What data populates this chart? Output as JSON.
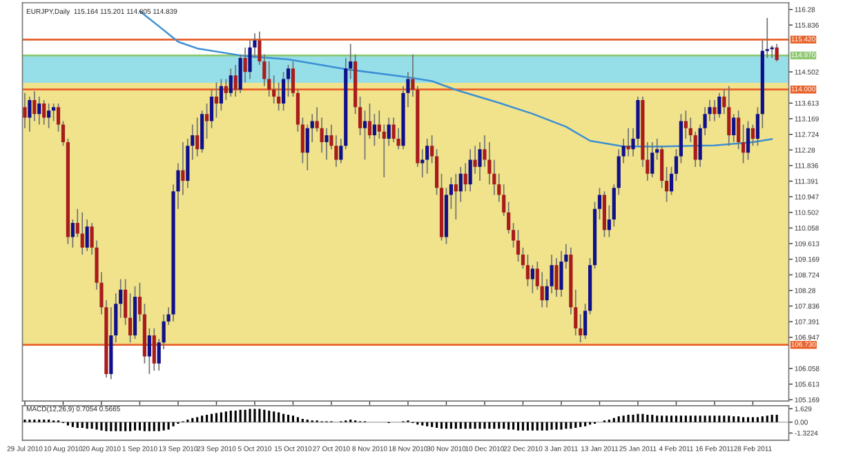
{
  "chart_data": [
    {
      "type": "candlestick",
      "title": "EURJPY,Daily  115.164 115.201 114.805 114.839",
      "categories": [
        "29 Jul 2010",
        null,
        null,
        null,
        null,
        null,
        null,
        null,
        "10 Aug 2010",
        null,
        null,
        null,
        null,
        null,
        null,
        null,
        "20 Aug 2010",
        null,
        null,
        null,
        null,
        null,
        null,
        null,
        "1 Sep 2010",
        null,
        null,
        null,
        null,
        null,
        null,
        null,
        "13 Sep 2010",
        null,
        null,
        null,
        null,
        null,
        null,
        null,
        "23 Sep 2010",
        null,
        null,
        null,
        null,
        null,
        null,
        null,
        "5 Oct 2010",
        null,
        null,
        null,
        null,
        null,
        null,
        null,
        "15 Oct 2010",
        null,
        null,
        null,
        null,
        null,
        null,
        null,
        "27 Oct 2010",
        null,
        null,
        null,
        null,
        null,
        null,
        null,
        "8 Nov 2010",
        null,
        null,
        null,
        null,
        null,
        null,
        null,
        "18 Nov 2010",
        null,
        null,
        null,
        null,
        null,
        null,
        null,
        "30 Nov 2010",
        null,
        null,
        null,
        null,
        null,
        null,
        null,
        "10 Dec 2010",
        null,
        null,
        null,
        null,
        null,
        null,
        null,
        "22 Dec 2010",
        null,
        null,
        null,
        null,
        null,
        null,
        null,
        "3 Jan 2011",
        null,
        null,
        null,
        null,
        null,
        null,
        null,
        "13 Jan 2011",
        null,
        null,
        null,
        null,
        null,
        null,
        null,
        "25 Jan 2011",
        null,
        null,
        null,
        null,
        null,
        null,
        null,
        "4 Feb 2011",
        null,
        null,
        null,
        null,
        null,
        null,
        null,
        "16 Feb 2011",
        null,
        null,
        null,
        null,
        null,
        null,
        null,
        "28 Feb 2011",
        null,
        null,
        null,
        null,
        null
      ],
      "ohlc": [
        [
          113.5,
          113.9,
          112.9,
          113.2
        ],
        [
          113.2,
          113.8,
          112.8,
          113.7
        ],
        [
          113.7,
          113.95,
          113.1,
          113.3
        ],
        [
          113.3,
          113.8,
          113.0,
          113.6
        ],
        [
          113.6,
          113.7,
          113.0,
          113.2
        ],
        [
          113.2,
          113.6,
          112.9,
          113.4
        ],
        [
          113.4,
          113.6,
          113.1,
          113.5
        ],
        [
          113.5,
          113.6,
          112.8,
          113.0
        ],
        [
          113.0,
          113.1,
          112.4,
          112.5
        ],
        [
          112.5,
          112.6,
          109.6,
          109.8
        ],
        [
          109.8,
          110.3,
          109.5,
          110.2
        ],
        [
          110.2,
          110.6,
          109.8,
          109.9
        ],
        [
          109.9,
          110.5,
          109.3,
          109.5
        ],
        [
          109.5,
          110.3,
          109.4,
          110.1
        ],
        [
          110.1,
          110.2,
          109.3,
          109.5
        ],
        [
          109.5,
          109.7,
          108.3,
          108.5
        ],
        [
          108.5,
          108.8,
          107.6,
          107.8
        ],
        [
          107.8,
          108.0,
          105.8,
          105.9
        ],
        [
          105.9,
          107.8,
          105.75,
          107.0
        ],
        [
          107.0,
          108.2,
          106.8,
          107.9
        ],
        [
          107.9,
          108.6,
          107.5,
          108.3
        ],
        [
          108.3,
          108.6,
          107.3,
          107.5
        ],
        [
          107.5,
          108.2,
          106.8,
          107.0
        ],
        [
          107.0,
          108.4,
          106.9,
          108.1
        ],
        [
          108.1,
          108.5,
          107.4,
          107.6
        ],
        [
          107.6,
          107.9,
          106.2,
          106.4
        ],
        [
          106.4,
          107.2,
          105.9,
          107.0
        ],
        [
          107.0,
          107.2,
          106.0,
          106.2
        ],
        [
          106.2,
          106.9,
          106.0,
          106.8
        ],
        [
          106.8,
          107.6,
          106.6,
          107.4
        ],
        [
          107.4,
          107.8,
          107.3,
          107.6
        ],
        [
          107.6,
          111.3,
          107.4,
          111.1
        ],
        [
          111.1,
          111.9,
          110.6,
          111.7
        ],
        [
          111.7,
          112.5,
          111.0,
          111.4
        ],
        [
          111.4,
          112.6,
          111.2,
          112.4
        ],
        [
          112.4,
          113.0,
          112.0,
          112.7
        ],
        [
          112.7,
          113.2,
          112.1,
          112.3
        ],
        [
          112.3,
          113.4,
          112.2,
          113.3
        ],
        [
          113.3,
          113.6,
          112.6,
          113.1
        ],
        [
          113.1,
          114.0,
          112.9,
          113.8
        ],
        [
          113.8,
          114.2,
          113.2,
          113.6
        ],
        [
          113.6,
          114.3,
          113.4,
          114.1
        ],
        [
          114.1,
          114.3,
          113.7,
          113.9
        ],
        [
          113.9,
          114.6,
          113.8,
          114.4
        ],
        [
          114.4,
          114.7,
          113.8,
          114.0
        ],
        [
          114.0,
          115.0,
          113.9,
          114.9
        ],
        [
          114.9,
          115.2,
          114.2,
          114.5
        ],
        [
          114.5,
          115.4,
          114.3,
          115.2
        ],
        [
          115.2,
          115.6,
          114.9,
          115.4
        ],
        [
          115.4,
          115.65,
          114.7,
          114.8
        ],
        [
          114.8,
          115.0,
          114.1,
          114.3
        ],
        [
          114.3,
          114.8,
          113.8,
          114.0
        ],
        [
          114.0,
          114.4,
          113.6,
          113.8
        ],
        [
          113.8,
          114.2,
          113.4,
          113.6
        ],
        [
          113.6,
          114.5,
          113.4,
          114.3
        ],
        [
          114.3,
          114.7,
          113.8,
          114.6
        ],
        [
          114.6,
          114.8,
          113.8,
          113.9
        ],
        [
          113.9,
          114.0,
          112.8,
          113.0
        ],
        [
          113.0,
          113.2,
          111.9,
          112.2
        ],
        [
          112.2,
          113.0,
          111.7,
          112.9
        ],
        [
          112.9,
          113.3,
          112.5,
          113.1
        ],
        [
          113.1,
          113.5,
          112.8,
          112.9
        ],
        [
          112.9,
          113.2,
          112.2,
          112.5
        ],
        [
          112.5,
          112.9,
          112.0,
          112.7
        ],
        [
          112.7,
          113.0,
          112.3,
          112.4
        ],
        [
          112.4,
          112.7,
          111.8,
          112.0
        ],
        [
          112.0,
          112.6,
          111.9,
          112.4
        ],
        [
          112.4,
          114.9,
          112.3,
          114.6
        ],
        [
          114.6,
          115.3,
          114.3,
          114.8
        ],
        [
          114.8,
          115.0,
          113.3,
          113.5
        ],
        [
          113.5,
          113.8,
          112.7,
          112.9
        ],
        [
          112.9,
          113.4,
          112.0,
          113.1
        ],
        [
          113.1,
          113.6,
          112.6,
          112.7
        ],
        [
          112.7,
          113.3,
          112.4,
          113.0
        ],
        [
          113.0,
          113.4,
          112.6,
          112.8
        ],
        [
          112.8,
          113.0,
          111.5,
          112.6
        ],
        [
          112.6,
          113.2,
          112.4,
          113.0
        ],
        [
          113.0,
          113.2,
          112.5,
          112.6
        ],
        [
          112.6,
          112.9,
          112.3,
          112.4
        ],
        [
          112.4,
          114.1,
          112.3,
          113.9
        ],
        [
          113.9,
          114.5,
          113.5,
          114.3
        ],
        [
          114.3,
          115.0,
          113.8,
          114.0
        ],
        [
          114.0,
          114.1,
          111.8,
          111.9
        ],
        [
          111.9,
          112.3,
          111.5,
          112.0
        ],
        [
          112.0,
          112.6,
          111.6,
          112.4
        ],
        [
          112.4,
          112.7,
          111.9,
          112.1
        ],
        [
          112.1,
          112.3,
          111.0,
          111.2
        ],
        [
          111.2,
          111.6,
          109.7,
          109.8
        ],
        [
          109.8,
          111.2,
          109.6,
          111.0
        ],
        [
          111.0,
          111.5,
          110.6,
          111.3
        ],
        [
          111.3,
          111.6,
          110.3,
          111.1
        ],
        [
          111.1,
          111.8,
          110.8,
          111.6
        ],
        [
          111.6,
          111.9,
          111.1,
          111.3
        ],
        [
          111.3,
          112.3,
          111.1,
          112.0
        ],
        [
          112.0,
          112.4,
          111.6,
          111.8
        ],
        [
          111.8,
          112.5,
          111.4,
          112.3
        ],
        [
          112.3,
          112.7,
          111.8,
          112.0
        ],
        [
          112.0,
          112.5,
          111.3,
          111.6
        ],
        [
          111.6,
          112.0,
          111.0,
          111.3
        ],
        [
          111.3,
          111.6,
          110.8,
          111.0
        ],
        [
          111.0,
          111.3,
          110.4,
          110.5
        ],
        [
          110.5,
          110.8,
          109.9,
          110.0
        ],
        [
          110.0,
          110.2,
          109.5,
          109.7
        ],
        [
          109.7,
          110.0,
          109.1,
          109.3
        ],
        [
          109.3,
          109.5,
          108.9,
          109.0
        ],
        [
          109.0,
          109.3,
          108.4,
          108.6
        ],
        [
          108.6,
          109.0,
          108.2,
          108.9
        ],
        [
          108.9,
          109.1,
          108.3,
          108.4
        ],
        [
          108.4,
          108.8,
          107.8,
          108.0
        ],
        [
          108.0,
          108.6,
          107.8,
          108.4
        ],
        [
          108.4,
          109.3,
          108.2,
          109.0
        ],
        [
          109.0,
          109.2,
          108.1,
          108.3
        ],
        [
          108.3,
          109.4,
          108.1,
          109.1
        ],
        [
          109.1,
          109.6,
          108.9,
          109.3
        ],
        [
          109.3,
          109.5,
          107.6,
          107.8
        ],
        [
          107.8,
          108.3,
          107.0,
          107.2
        ],
        [
          107.2,
          107.6,
          106.8,
          107.0
        ],
        [
          107.0,
          107.9,
          106.9,
          107.7
        ],
        [
          107.7,
          109.2,
          107.6,
          109.0
        ],
        [
          109.0,
          110.8,
          108.9,
          110.6
        ],
        [
          110.6,
          111.2,
          110.3,
          111.0
        ],
        [
          111.0,
          111.1,
          109.8,
          110.0
        ],
        [
          110.0,
          110.7,
          109.8,
          110.3
        ],
        [
          110.3,
          111.3,
          110.1,
          111.2
        ],
        [
          111.2,
          112.3,
          111.0,
          112.1
        ],
        [
          112.1,
          112.6,
          111.9,
          112.4
        ],
        [
          112.4,
          112.9,
          112.1,
          112.3
        ],
        [
          112.3,
          112.9,
          112.1,
          112.6
        ],
        [
          112.6,
          113.8,
          112.4,
          113.7
        ],
        [
          113.7,
          113.8,
          111.8,
          112.0
        ],
        [
          112.0,
          112.5,
          111.4,
          111.6
        ],
        [
          111.6,
          112.5,
          111.5,
          112.2
        ],
        [
          112.2,
          112.6,
          112.0,
          112.3
        ],
        [
          112.3,
          112.4,
          111.2,
          111.4
        ],
        [
          111.4,
          111.8,
          110.8,
          111.1
        ],
        [
          111.1,
          111.8,
          111.0,
          111.6
        ],
        [
          111.6,
          112.3,
          111.4,
          112.1
        ],
        [
          112.1,
          113.3,
          111.9,
          113.1
        ],
        [
          113.1,
          113.4,
          112.6,
          112.9
        ],
        [
          112.9,
          113.2,
          112.5,
          112.7
        ],
        [
          112.7,
          112.8,
          111.8,
          112.0
        ],
        [
          112.0,
          113.0,
          111.8,
          112.9
        ],
        [
          112.9,
          113.5,
          112.7,
          113.3
        ],
        [
          113.3,
          113.7,
          113.1,
          113.5
        ],
        [
          113.5,
          113.7,
          113.1,
          113.3
        ],
        [
          113.3,
          113.9,
          113.2,
          113.8
        ],
        [
          113.8,
          114.0,
          113.3,
          113.5
        ],
        [
          113.5,
          114.1,
          112.4,
          112.7
        ],
        [
          112.7,
          113.3,
          112.5,
          113.2
        ],
        [
          113.2,
          113.4,
          112.3,
          112.5
        ],
        [
          112.5,
          113.0,
          111.9,
          112.2
        ],
        [
          112.2,
          113.1,
          112.0,
          112.9
        ],
        [
          112.9,
          113.0,
          112.4,
          112.6
        ],
        [
          112.6,
          113.5,
          112.4,
          113.3
        ],
        [
          113.3,
          115.4,
          112.9,
          115.1
        ],
        [
          115.1,
          116.04,
          114.9,
          115.15
        ],
        [
          115.15,
          115.25,
          114.9,
          115.2
        ],
        [
          115.2,
          115.3,
          114.8,
          114.84
        ]
      ],
      "colors": [
        "#a81c1c",
        "#10108a",
        "#a81c1c",
        "#10108a",
        "#a81c1c",
        "#10108a",
        "#10108a",
        "#a81c1c",
        "#a81c1c",
        "#a81c1c",
        "#10108a",
        "#a81c1c",
        "#a81c1c",
        "#10108a",
        "#a81c1c",
        "#a81c1c",
        "#a81c1c",
        "#a81c1c",
        "#10108a",
        "#10108a",
        "#10108a",
        "#a81c1c",
        "#a81c1c",
        "#10108a",
        "#a81c1c",
        "#a81c1c",
        "#10108a",
        "#a81c1c",
        "#10108a",
        "#10108a",
        "#10108a",
        "#10108a",
        "#10108a",
        "#a81c1c",
        "#10108a",
        "#10108a",
        "#a81c1c",
        "#10108a",
        "#a81c1c",
        "#10108a",
        "#a81c1c",
        "#10108a",
        "#a81c1c",
        "#10108a",
        "#a81c1c",
        "#10108a",
        "#a81c1c",
        "#10108a",
        "#10108a",
        "#a81c1c",
        "#a81c1c",
        "#a81c1c",
        "#a81c1c",
        "#a81c1c",
        "#10108a",
        "#10108a",
        "#a81c1c",
        "#a81c1c",
        "#a81c1c",
        "#10108a",
        "#10108a",
        "#a81c1c",
        "#a81c1c",
        "#10108a",
        "#a81c1c",
        "#a81c1c",
        "#10108a",
        "#10108a",
        "#10108a",
        "#a81c1c",
        "#a81c1c",
        "#10108a",
        "#a81c1c",
        "#10108a",
        "#a81c1c",
        "#a81c1c",
        "#10108a",
        "#a81c1c",
        "#a81c1c",
        "#10108a",
        "#10108a",
        "#a81c1c",
        "#a81c1c",
        "#10108a",
        "#10108a",
        "#a81c1c",
        "#a81c1c",
        "#a81c1c",
        "#10108a",
        "#10108a",
        "#a81c1c",
        "#10108a",
        "#a81c1c",
        "#10108a",
        "#a81c1c",
        "#10108a",
        "#a81c1c",
        "#a81c1c",
        "#a81c1c",
        "#a81c1c",
        "#a81c1c",
        "#a81c1c",
        "#a81c1c",
        "#a81c1c",
        "#a81c1c",
        "#a81c1c",
        "#10108a",
        "#a81c1c",
        "#a81c1c",
        "#10108a",
        "#10108a",
        "#a81c1c",
        "#10108a",
        "#10108a",
        "#a81c1c",
        "#a81c1c",
        "#a81c1c",
        "#10108a",
        "#10108a",
        "#10108a",
        "#10108a",
        "#a81c1c",
        "#10108a",
        "#10108a",
        "#10108a",
        "#10108a",
        "#a81c1c",
        "#10108a",
        "#10108a",
        "#a81c1c",
        "#a81c1c",
        "#10108a",
        "#10108a",
        "#a81c1c",
        "#a81c1c",
        "#10108a",
        "#10108a",
        "#10108a",
        "#a81c1c",
        "#a81c1c",
        "#a81c1c",
        "#10108a",
        "#10108a",
        "#10108a",
        "#a81c1c",
        "#10108a",
        "#a81c1c",
        "#a81c1c",
        "#10108a",
        "#a81c1c",
        "#a81c1c",
        "#10108a",
        "#a81c1c",
        "#10108a",
        "#10108a",
        "#10108a",
        "#10108a",
        "#a81c1c"
      ],
      "series": [
        {
          "type": "line",
          "color": "#3c8fd4",
          "values": [
            null,
            null,
            null,
            null,
            null,
            null,
            null,
            null,
            null,
            null,
            null,
            null,
            null,
            null,
            null,
            null,
            null,
            null,
            null,
            null,
            null,
            null,
            null,
            null,
            116.23,
            null,
            null,
            null,
            115.8,
            null,
            null,
            null,
            115.36,
            null,
            null,
            null,
            115.17,
            null,
            null,
            null,
            null,
            null,
            null,
            null,
            null,
            null,
            114.95,
            null,
            null,
            null,
            null,
            null,
            null,
            null,
            null,
            114.86,
            null,
            null,
            null,
            null,
            null,
            null,
            null,
            null,
            null,
            null,
            null,
            114.58,
            null,
            null,
            null,
            null,
            null,
            null,
            null,
            null,
            null,
            null,
            null,
            114.37,
            null,
            null,
            null,
            null,
            null,
            114.24,
            null,
            null,
            null,
            null,
            113.99,
            null,
            null,
            null,
            null,
            null,
            null,
            null,
            null,
            113.62,
            null,
            null,
            null,
            null,
            null,
            null,
            113.31,
            null,
            null,
            null,
            null,
            null,
            null,
            112.94,
            null,
            null,
            null,
            null,
            112.54,
            null,
            null,
            null,
            null,
            null,
            null,
            112.38,
            null,
            null,
            null,
            null,
            null,
            null,
            null,
            112.38,
            null,
            null,
            null,
            null,
            null,
            null,
            null,
            null,
            null,
            null,
            112.41,
            null,
            null,
            null,
            null,
            null,
            null,
            null,
            112.5,
            null,
            null,
            null,
            112.59,
            null
          ]
        }
      ],
      "ylim": [
        105.13,
        116.47
      ],
      "yticks": [
        116.28,
        115.836,
        114.502,
        113.613,
        113.169,
        112.724,
        112.28,
        111.836,
        111.391,
        110.947,
        110.502,
        110.058,
        109.613,
        109.169,
        108.724,
        108.28,
        107.836,
        107.391,
        106.947,
        106.058,
        105.613,
        105.169
      ],
      "ref_lines": [
        {
          "axis": "y",
          "value": 115.42,
          "label": "115.420",
          "color": "#e8622a"
        },
        {
          "axis": "y",
          "value": 114.97,
          "label": "114.970",
          "color": "#8cc870"
        },
        {
          "axis": "y",
          "value": 114.0,
          "label": "114.000",
          "color": "#e8622a"
        },
        {
          "axis": "y",
          "value": 106.73,
          "label": "106.730",
          "color": "#e8622a"
        }
      ],
      "bands": [
        {
          "axis": "y",
          "from": 106.73,
          "to": 114.19,
          "color": "#f0e38c"
        },
        {
          "axis": "y",
          "from": 114.19,
          "to": 114.97,
          "color": "#96dfe9"
        }
      ],
      "tick_labels": true
    },
    {
      "type": "bar",
      "title": "MACD(12,26,9) 0.7054 0.5665",
      "categories": [
        null,
        null,
        null,
        null,
        null,
        null,
        null,
        null,
        null,
        null,
        null,
        null,
        null,
        null,
        null,
        null,
        null,
        null,
        null,
        null,
        null,
        null,
        null,
        null,
        null,
        null,
        null,
        null,
        null,
        null,
        null,
        null,
        null,
        null,
        null,
        null,
        null,
        null,
        null,
        null,
        null,
        null,
        null,
        null,
        null,
        null,
        null,
        null,
        null,
        null,
        null,
        null,
        null,
        null,
        null,
        null,
        null,
        null,
        null,
        null,
        null,
        null,
        null,
        null,
        null,
        null,
        null,
        null,
        null,
        null,
        null,
        null,
        null,
        null,
        null,
        null,
        null,
        null,
        null,
        null,
        null,
        null,
        null,
        null,
        null,
        null,
        null,
        null,
        null,
        null,
        null,
        null,
        null,
        null,
        null,
        null,
        null,
        null,
        null,
        null,
        null,
        null,
        null,
        null,
        null,
        null,
        null,
        null,
        null,
        null,
        null,
        null,
        null,
        null,
        null,
        null,
        null,
        null,
        null,
        null,
        null,
        null,
        null,
        null,
        null,
        null,
        null,
        null,
        null,
        null,
        null,
        null,
        null,
        null,
        null,
        null,
        null,
        null,
        null,
        null,
        null,
        null,
        null,
        null,
        null,
        null,
        null,
        null,
        null,
        null,
        null,
        null,
        null,
        null,
        null,
        null,
        null,
        null
      ],
      "tick_labels": "y",
      "series": [
        {
          "color": "#000000",
          "values": [
            0.3,
            0.3,
            0.3,
            0.3,
            0.3,
            0.3,
            0.2,
            0.2,
            -0.1,
            -0.4,
            -0.6,
            -0.7,
            -0.7,
            -0.8,
            -0.8,
            -0.9,
            -1.0,
            -1.1,
            -1.1,
            -1.1,
            -1.1,
            -1.1,
            -1.1,
            -1.0,
            -1.0,
            -1.1,
            -1.1,
            -1.1,
            -1.1,
            -1.0,
            -0.9,
            -0.5,
            -0.2,
            0.1,
            0.3,
            0.5,
            0.6,
            0.8,
            0.9,
            1.0,
            1.1,
            1.2,
            1.3,
            1.4,
            1.4,
            1.5,
            1.5,
            1.6,
            1.6,
            1.6,
            1.5,
            1.4,
            1.3,
            1.2,
            1.0,
            0.9,
            0.8,
            0.6,
            0.4,
            0.3,
            0.2,
            0.2,
            0.1,
            0.1,
            0.1,
            0.0,
            0.1,
            0.2,
            0.3,
            0.2,
            0.1,
            0.1,
            0.0,
            0.0,
            0.0,
            0.0,
            -0.1,
            0.0,
            0.0,
            0.1,
            0.2,
            -0.1,
            -0.3,
            -0.4,
            -0.5,
            -0.6,
            -0.7,
            -0.8,
            -0.8,
            -0.8,
            -0.8,
            -0.8,
            -0.8,
            -0.8,
            -0.8,
            -0.8,
            -0.8,
            -0.8,
            -0.8,
            -0.8,
            -0.8,
            -0.9,
            -0.9,
            -1.0,
            -1.0,
            -1.0,
            -1.0,
            -1.0,
            -1.0,
            -1.0,
            -0.9,
            -0.9,
            -0.9,
            -0.8,
            -0.8,
            -0.7,
            -0.6,
            -0.5,
            -0.3,
            -0.2,
            0.0,
            0.2,
            0.3,
            0.5,
            0.7,
            0.8,
            0.9,
            0.9,
            1.0,
            1.0,
            0.9,
            0.9,
            0.8,
            0.8,
            0.8,
            0.8,
            0.8,
            0.8,
            0.8,
            0.8,
            0.8,
            0.8,
            0.8,
            0.8,
            0.8,
            0.8,
            0.8,
            0.8,
            0.7,
            0.7,
            0.6,
            0.6,
            0.6,
            0.6,
            0.7,
            0.8,
            0.9,
            0.9
          ]
        }
      ],
      "ylim": [
        -2.2,
        2.0
      ],
      "yticks": [
        1.629,
        {
          "value": 0,
          "label": "0.00"
        },
        -1.3224
      ]
    }
  ]
}
